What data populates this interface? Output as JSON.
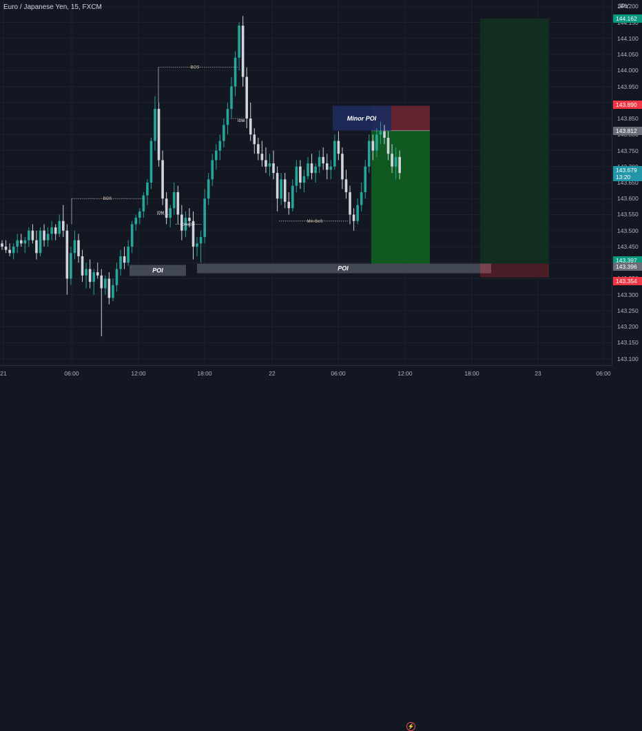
{
  "header": {
    "symbol_title": "Euro / Japanese Yen, 15, FXCM"
  },
  "price_axis": {
    "currency": "JPY",
    "ticks": [
      "144.200",
      "144.150",
      "144.100",
      "144.050",
      "144.000",
      "143.950",
      "143.900",
      "143.850",
      "143.800",
      "143.750",
      "143.700",
      "143.650",
      "143.600",
      "143.550",
      "143.500",
      "143.450",
      "143.400",
      "143.350",
      "143.300",
      "143.250",
      "143.200",
      "143.150",
      "143.100"
    ],
    "badges": [
      {
        "price": 144.162,
        "text": "144.162",
        "color": "#089981"
      },
      {
        "price": 143.89,
        "text": "143.890",
        "color": "#f23645"
      },
      {
        "price": 143.812,
        "text": "143.812",
        "color": "#6a6d78"
      },
      {
        "price": 143.679,
        "text": "143.679",
        "sub": "13:20",
        "color": "#2196a8"
      },
      {
        "price": 143.397,
        "text": "143.397",
        "color": "#089981"
      },
      {
        "price": 143.396,
        "text": "143.396",
        "color": "#6a6d78"
      },
      {
        "price": 143.354,
        "text": "143.354",
        "color": "#f23645"
      }
    ]
  },
  "time_axis": {
    "ticks": [
      "21",
      "06:00",
      "12:00",
      "18:00",
      "22",
      "06:00",
      "12:00",
      "18:00",
      "23",
      "06:00"
    ]
  },
  "annotations": {
    "bos_upper": "BOS",
    "bos_lower": "BOS",
    "idm_upper": "IDM",
    "idm_lower": "IDM",
    "choch": "CHoCH",
    "min_bos": "Min-BoS",
    "minor_poi": "Minor POI",
    "poi_left": "POI",
    "poi_main": "POI"
  },
  "colors": {
    "up": "#26a69a",
    "down": "#d1d4dc",
    "background": "#131722"
  },
  "chart_data": {
    "type": "candlestick",
    "symbol": "EURJPY",
    "timeframe": "15",
    "ohlc": [
      [
        143.46,
        143.47,
        143.44,
        143.45
      ],
      [
        143.45,
        143.47,
        143.43,
        143.44
      ],
      [
        143.44,
        143.46,
        143.42,
        143.43
      ],
      [
        143.43,
        143.46,
        143.41,
        143.45
      ],
      [
        143.45,
        143.49,
        143.43,
        143.47
      ],
      [
        143.47,
        143.49,
        143.45,
        143.46
      ],
      [
        143.46,
        143.48,
        143.43,
        143.47
      ],
      [
        143.47,
        143.51,
        143.45,
        143.5
      ],
      [
        143.5,
        143.52,
        143.46,
        143.47
      ],
      [
        143.47,
        143.5,
        143.41,
        143.43
      ],
      [
        143.43,
        143.51,
        143.42,
        143.5
      ],
      [
        143.5,
        143.52,
        143.45,
        143.47
      ],
      [
        143.47,
        143.51,
        143.45,
        143.49
      ],
      [
        143.49,
        143.53,
        143.47,
        143.51
      ],
      [
        143.51,
        143.52,
        143.47,
        143.49
      ],
      [
        143.49,
        143.55,
        143.48,
        143.53
      ],
      [
        143.53,
        143.58,
        143.48,
        143.5
      ],
      [
        143.5,
        143.52,
        143.3,
        143.35
      ],
      [
        143.35,
        143.45,
        143.33,
        143.43
      ],
      [
        143.43,
        143.5,
        143.41,
        143.47
      ],
      [
        143.47,
        143.49,
        143.4,
        143.42
      ],
      [
        143.42,
        143.44,
        143.34,
        143.36
      ],
      [
        143.36,
        143.4,
        143.32,
        143.38
      ],
      [
        143.38,
        143.41,
        143.32,
        143.34
      ],
      [
        143.34,
        143.38,
        143.3,
        143.37
      ],
      [
        143.37,
        143.4,
        143.35,
        143.36
      ],
      [
        143.36,
        143.38,
        143.17,
        143.32
      ],
      [
        143.32,
        143.36,
        143.3,
        143.35
      ],
      [
        143.35,
        143.37,
        143.27,
        143.29
      ],
      [
        143.29,
        143.35,
        143.28,
        143.33
      ],
      [
        143.33,
        143.4,
        143.31,
        143.38
      ],
      [
        143.38,
        143.44,
        143.36,
        143.42
      ],
      [
        143.42,
        143.45,
        143.38,
        143.4
      ],
      [
        143.4,
        143.47,
        143.39,
        143.45
      ],
      [
        143.45,
        143.53,
        143.43,
        143.52
      ],
      [
        143.52,
        143.55,
        143.5,
        143.54
      ],
      [
        143.54,
        143.57,
        143.52,
        143.56
      ],
      [
        143.56,
        143.62,
        143.54,
        143.61
      ],
      [
        143.61,
        143.66,
        143.58,
        143.65
      ],
      [
        143.65,
        143.79,
        143.63,
        143.78
      ],
      [
        143.78,
        143.92,
        143.75,
        143.88
      ],
      [
        143.88,
        143.9,
        143.7,
        143.72
      ],
      [
        143.72,
        143.75,
        143.58,
        143.6
      ],
      [
        143.6,
        143.62,
        143.52,
        143.54
      ],
      [
        143.54,
        143.58,
        143.51,
        143.57
      ],
      [
        143.57,
        143.65,
        143.55,
        143.62
      ],
      [
        143.62,
        143.64,
        143.52,
        143.55
      ],
      [
        143.55,
        143.58,
        143.47,
        143.5
      ],
      [
        143.5,
        143.56,
        143.48,
        143.54
      ],
      [
        143.54,
        143.57,
        143.51,
        143.53
      ],
      [
        143.53,
        143.56,
        143.41,
        143.45
      ],
      [
        143.45,
        143.48,
        143.42,
        143.46
      ],
      [
        143.46,
        143.5,
        143.4,
        143.48
      ],
      [
        143.48,
        143.63,
        143.46,
        143.6
      ],
      [
        143.6,
        143.68,
        143.58,
        143.66
      ],
      [
        143.66,
        143.74,
        143.64,
        143.72
      ],
      [
        143.72,
        143.77,
        143.69,
        143.75
      ],
      [
        143.75,
        143.8,
        143.72,
        143.78
      ],
      [
        143.78,
        143.85,
        143.76,
        143.83
      ],
      [
        143.83,
        143.9,
        143.8,
        143.88
      ],
      [
        143.88,
        143.98,
        143.85,
        143.95
      ],
      [
        143.95,
        144.06,
        143.92,
        144.04
      ],
      [
        144.04,
        144.15,
        144.0,
        144.14
      ],
      [
        144.14,
        144.17,
        143.95,
        143.98
      ],
      [
        143.98,
        144.01,
        143.82,
        143.85
      ],
      [
        143.85,
        143.9,
        143.78,
        143.8
      ],
      [
        143.8,
        143.82,
        143.74,
        143.77
      ],
      [
        143.77,
        143.79,
        143.72,
        143.74
      ],
      [
        143.74,
        143.78,
        143.7,
        143.72
      ],
      [
        143.72,
        143.76,
        143.68,
        143.7
      ],
      [
        143.7,
        143.74,
        143.67,
        143.71
      ],
      [
        143.71,
        143.75,
        143.66,
        143.68
      ],
      [
        143.68,
        143.7,
        143.56,
        143.6
      ],
      [
        143.6,
        143.68,
        143.58,
        143.66
      ],
      [
        143.66,
        143.68,
        143.57,
        143.59
      ],
      [
        143.59,
        143.62,
        143.55,
        143.57
      ],
      [
        143.57,
        143.66,
        143.56,
        143.64
      ],
      [
        143.64,
        143.72,
        143.62,
        143.7
      ],
      [
        143.7,
        143.72,
        143.63,
        143.65
      ],
      [
        143.65,
        143.69,
        143.62,
        143.67
      ],
      [
        143.67,
        143.73,
        143.66,
        143.71
      ],
      [
        143.71,
        143.74,
        143.66,
        143.68
      ],
      [
        143.68,
        143.71,
        143.65,
        143.7
      ],
      [
        143.7,
        143.75,
        143.68,
        143.73
      ],
      [
        143.73,
        143.76,
        143.69,
        143.71
      ],
      [
        143.71,
        143.74,
        143.66,
        143.69
      ],
      [
        143.69,
        143.72,
        143.66,
        143.7
      ],
      [
        143.7,
        143.8,
        143.69,
        143.78
      ],
      [
        143.78,
        143.81,
        143.72,
        143.74
      ],
      [
        143.74,
        143.76,
        143.63,
        143.66
      ],
      [
        143.66,
        143.69,
        143.6,
        143.62
      ],
      [
        143.62,
        143.64,
        143.52,
        143.55
      ],
      [
        143.55,
        143.57,
        143.5,
        143.53
      ],
      [
        143.53,
        143.6,
        143.52,
        143.58
      ],
      [
        143.58,
        143.65,
        143.56,
        143.62
      ],
      [
        143.62,
        143.72,
        143.6,
        143.7
      ],
      [
        143.7,
        143.8,
        143.68,
        143.78
      ],
      [
        143.78,
        143.8,
        143.72,
        143.75
      ],
      [
        143.75,
        143.82,
        143.73,
        143.8
      ],
      [
        143.8,
        143.84,
        143.77,
        143.81
      ],
      [
        143.81,
        143.83,
        143.77,
        143.79
      ],
      [
        143.79,
        143.81,
        143.72,
        143.74
      ],
      [
        143.74,
        143.77,
        143.68,
        143.7
      ],
      [
        143.7,
        143.76,
        143.66,
        143.73
      ],
      [
        143.73,
        143.75,
        143.66,
        143.68
      ]
    ]
  }
}
